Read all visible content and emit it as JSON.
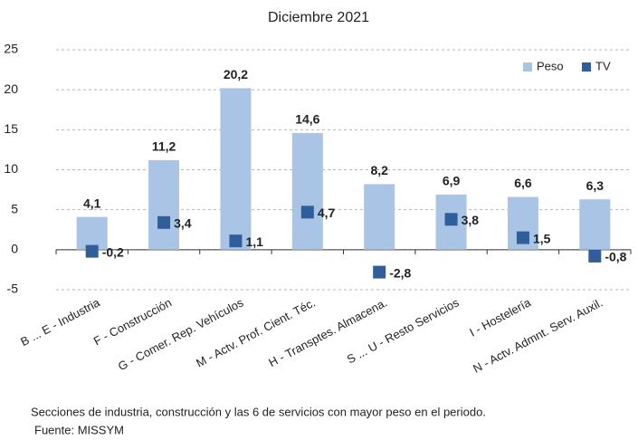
{
  "chart_data": {
    "type": "bar",
    "title": "Diciembre 2021",
    "categories": [
      "B ... E - Industria",
      "F - Construcción",
      "G - Comer. Rep. Vehículos",
      "M - Actv. Prof. Cient. Téc.",
      "H - Transptes. Almacena.",
      "S ... U - Resto Servicios",
      "I - Hostelería",
      "N - Actv. Admnt. Serv. Auxil."
    ],
    "series": [
      {
        "name": "Peso",
        "color": "#a9c4e4",
        "label_color": "#7ea3d2",
        "mark": "bar",
        "values": [
          4.1,
          11.2,
          20.2,
          14.6,
          8.2,
          6.9,
          6.6,
          6.3
        ],
        "value_labels": [
          "4,1",
          "11,2",
          "20,2",
          "14,6",
          "8,2",
          "6,9",
          "6,6",
          "6,3"
        ]
      },
      {
        "name": "TV",
        "color": "#2f5e9b",
        "label_color": "#2f4f7f",
        "mark": "square",
        "values": [
          -0.2,
          3.4,
          1.1,
          4.7,
          -2.8,
          3.8,
          1.5,
          -0.8
        ],
        "value_labels": [
          "-0,2",
          "3,4",
          "1,1",
          "4,7",
          "-2,8",
          "3,8",
          "1,5",
          "-0,8"
        ]
      }
    ],
    "ylim": [
      -5,
      25
    ],
    "yticks": [
      -5,
      0,
      5,
      10,
      15,
      20,
      25
    ],
    "grid": true,
    "legend": "top-right",
    "footnote": "Secciones de industria, construcción y las 6 de servicios con mayor peso en el periodo.",
    "source": "Fuente: MISSYM"
  }
}
